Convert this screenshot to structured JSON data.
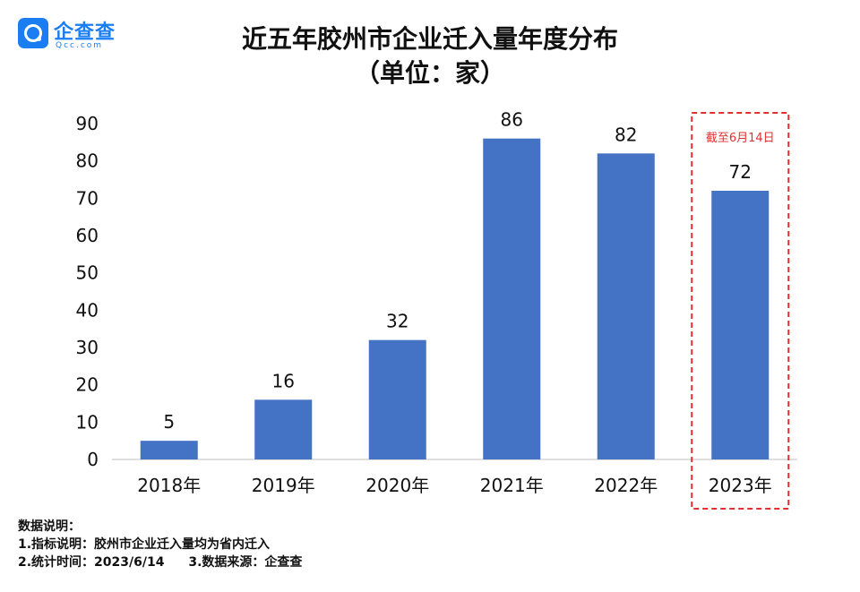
{
  "logo": {
    "name": "企查查",
    "sub": "Qcc.com"
  },
  "title_line1": "近五年胶州市企业迁入量年度分布",
  "title_line2": "（单位：家）",
  "annotation": "截至6月14日",
  "notes": {
    "heading": "数据说明：",
    "line1": "1.指标说明：胶州市企业迁入量均为省内迁入",
    "line2a": "2.统计时间：2023/6/14",
    "line2b": "3.数据来源：企查查"
  },
  "colors": {
    "bar": "#4472c4",
    "highlight": "#e03030",
    "brand": "#1a7ef2"
  },
  "chart_data": {
    "type": "bar",
    "categories": [
      "2018年",
      "2019年",
      "2020年",
      "2021年",
      "2022年",
      "2023年"
    ],
    "values": [
      5,
      16,
      32,
      86,
      82,
      72
    ],
    "ylim": [
      0,
      90
    ],
    "yticks": [
      0,
      10,
      20,
      30,
      40,
      50,
      60,
      70,
      80,
      90
    ],
    "data_labels": true,
    "grid": false,
    "highlighted_category": "2023年"
  }
}
